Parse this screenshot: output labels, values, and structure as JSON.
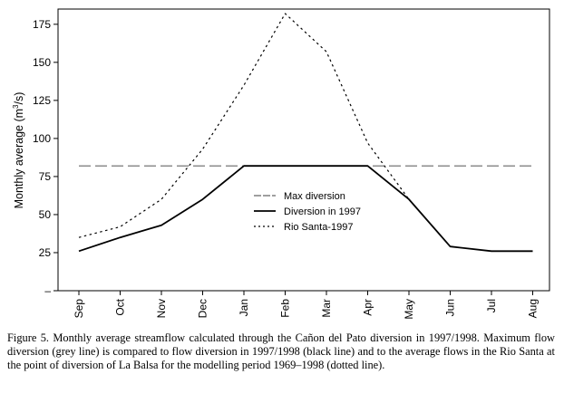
{
  "chart_data": {
    "type": "line",
    "ylabel_prefix": "Monthly average (m",
    "ylabel_sup": "3",
    "ylabel_suffix": "/s)",
    "xlabel": "",
    "categories": [
      "Sep",
      "Oct",
      "Nov",
      "Dec",
      "Jan",
      "Feb",
      "Mar",
      "Apr",
      "May",
      "Jun",
      "Jul",
      "Aug"
    ],
    "ylim": [
      0,
      185
    ],
    "yticks": [
      0,
      25,
      50,
      75,
      100,
      125,
      150,
      175
    ],
    "ytick_labels": [
      "–",
      "25",
      "50",
      "75",
      "100",
      "125",
      "150",
      "175"
    ],
    "grid": false,
    "legend_position": "center",
    "series": [
      {
        "name": "Max diversion",
        "style": "long-dash",
        "color": "#666666",
        "values": [
          82,
          82,
          82,
          82,
          82,
          82,
          82,
          82,
          82,
          82,
          82,
          82
        ]
      },
      {
        "name": "Diversion in 1997",
        "style": "solid",
        "color": "#000000",
        "values": [
          26,
          35,
          43,
          60,
          82,
          82,
          82,
          82,
          60,
          29,
          26,
          26
        ]
      },
      {
        "name": "Rio Santa-1997",
        "style": "dotted",
        "color": "#000000",
        "values": [
          35,
          42,
          60,
          93,
          135,
          182,
          157,
          97,
          60,
          null,
          null,
          null
        ]
      }
    ]
  },
  "caption": "Figure 5.  Monthly average streamflow calculated through the Cañon del Pato diversion in 1997/1998. Maximum flow diversion (grey line) is compared to flow diversion in 1997/1998 (black line) and to the average flows in the Rio Santa at the point of diversion of La Balsa for the modelling period 1969–1998 (dotted line)."
}
